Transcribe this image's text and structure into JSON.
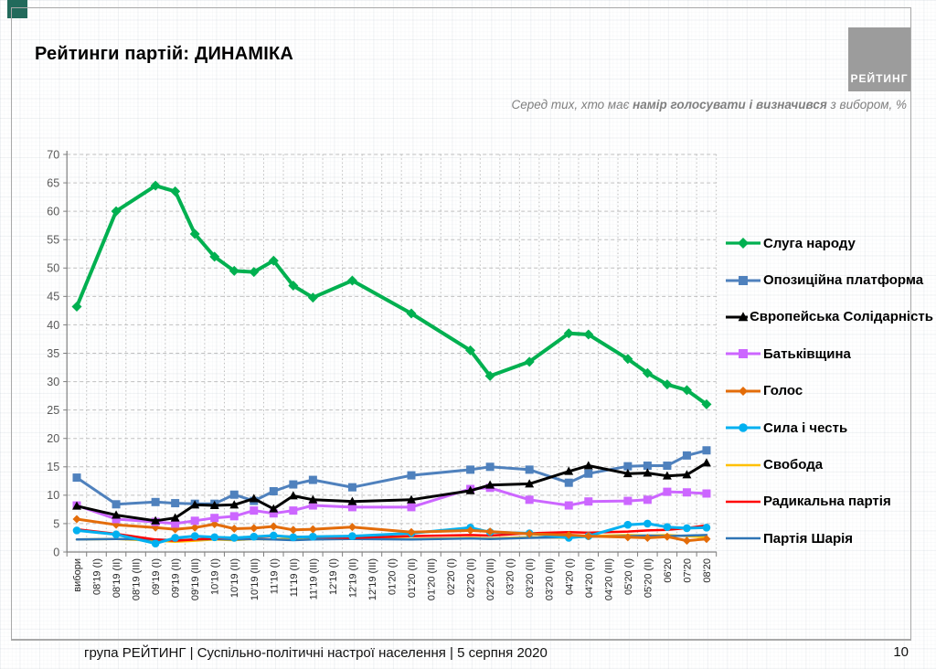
{
  "slide": {
    "title": "Рейтинги партій: ДИНАМІКА",
    "subtitle_prefix": "Серед тих, хто має ",
    "subtitle_bold": "намір голосувати і визначився",
    "subtitle_suffix": " з вибором, %",
    "logo_text": "РЕЙТИНГ",
    "footer_text": "група РЕЙТИНГ | Суспільно-політичні настрої населення  | 5 серпня 2020",
    "page_number": "10"
  },
  "chart_data": {
    "type": "line",
    "title": "Рейтинги партій: ДИНАМІКА",
    "xlabel": "",
    "ylabel": "",
    "ylim": [
      0,
      70
    ],
    "ytick_step": 5,
    "grid": true,
    "legend_position": "right",
    "categories": [
      "вибори",
      "08'19 (I)",
      "08'19 (II)",
      "08'19 (III)",
      "09'19 (I)",
      "09'19 (II)",
      "09'19 (III)",
      "10'19 (I)",
      "10'19 (II)",
      "10'19 (III)",
      "11'19 (I)",
      "11'19 (II)",
      "11'19 (III)",
      "12'19 (I)",
      "12'19 (II)",
      "12'19 (III)",
      "01'20 (I)",
      "01'20 (II)",
      "01'20 (III)",
      "02'20 (I)",
      "02'20 (II)",
      "02'20 (III)",
      "03'20 (I)",
      "03'20 (II)",
      "03'20 (III)",
      "04'20 (I)",
      "04'20 (II)",
      "04'20 (III)",
      "05'20 (I)",
      "05'20 (II)",
      "06'20",
      "07'20",
      "08'20"
    ],
    "series": [
      {
        "name": "Слуга народу",
        "color": "#00b050",
        "marker": "diamond",
        "line_width": 4,
        "marker_size": 5.5,
        "values": [
          43.2,
          null,
          60,
          null,
          64.5,
          63.5,
          56,
          52,
          49.5,
          49.3,
          51.3,
          46.9,
          44.8,
          null,
          47.8,
          null,
          null,
          42,
          null,
          null,
          35.5,
          31,
          null,
          33.5,
          null,
          38.5,
          38.3,
          null,
          34,
          31.5,
          29.5,
          28.5,
          26
        ]
      },
      {
        "name": "Опозиційна платформа",
        "color": "#4f81bd",
        "marker": "square",
        "line_width": 3,
        "marker_size": 4.5,
        "values": [
          13.1,
          null,
          8.4,
          null,
          8.8,
          8.6,
          8.5,
          8.5,
          10.1,
          9.0,
          10.7,
          11.9,
          12.7,
          null,
          11.4,
          null,
          null,
          13.5,
          null,
          null,
          14.5,
          15.0,
          null,
          14.5,
          null,
          12.2,
          13.8,
          null,
          15.1,
          15.2,
          15.2,
          17.0,
          17.9
        ]
      },
      {
        "name": "Європейська Солідарність",
        "color": "#000000",
        "marker": "triangle",
        "line_width": 3,
        "marker_size": 5.2,
        "values": [
          8.1,
          null,
          6.5,
          null,
          5.5,
          6.0,
          8.3,
          8.2,
          8.3,
          9.4,
          7.6,
          9.9,
          9.2,
          null,
          8.9,
          null,
          null,
          9.2,
          null,
          null,
          10.8,
          11.8,
          null,
          12.0,
          null,
          14.2,
          15.2,
          null,
          13.8,
          13.9,
          13.4,
          13.6,
          15.7
        ]
      },
      {
        "name": "Батьківщина",
        "color": "#cc66ff",
        "marker": "square",
        "line_width": 3,
        "marker_size": 4.5,
        "values": [
          8.2,
          null,
          5.8,
          null,
          5.3,
          5.0,
          5.5,
          6.0,
          6.3,
          7.3,
          6.8,
          7.3,
          8.2,
          null,
          7.9,
          null,
          null,
          7.9,
          null,
          null,
          11.1,
          11.3,
          null,
          9.2,
          null,
          8.2,
          8.9,
          null,
          9.0,
          9.2,
          10.6,
          10.5,
          10.3
        ]
      },
      {
        "name": "Голос",
        "color": "#e36c09",
        "marker": "diamond",
        "line_width": 3,
        "marker_size": 4.5,
        "values": [
          5.8,
          null,
          4.8,
          null,
          4.3,
          4.0,
          4.3,
          4.9,
          4.1,
          4.2,
          4.5,
          3.9,
          4.0,
          null,
          4.4,
          null,
          null,
          3.5,
          null,
          null,
          3.8,
          3.6,
          null,
          3.2,
          null,
          3.0,
          2.8,
          null,
          2.6,
          2.5,
          2.7,
          2.0,
          2.3
        ]
      },
      {
        "name": "Сила і честь",
        "color": "#00b0f0",
        "marker": "circle",
        "line_width": 3,
        "marker_size": 4.3,
        "values": [
          3.8,
          null,
          3.1,
          null,
          1.5,
          2.5,
          2.8,
          2.6,
          2.5,
          2.7,
          2.9,
          2.6,
          2.7,
          null,
          2.8,
          null,
          null,
          3.3,
          null,
          null,
          4.3,
          3.5,
          null,
          3.3,
          null,
          2.5,
          2.8,
          null,
          4.8,
          5.0,
          4.4,
          4.2,
          4.3
        ]
      },
      {
        "name": "Свобода",
        "color": "#ffc000",
        "marker": "none",
        "line_width": 2.5,
        "marker_size": 0,
        "values": [
          2.2,
          null,
          2.3,
          null,
          2.0,
          1.8,
          2.0,
          2.2,
          2.1,
          2.3,
          2.2,
          2.4,
          2.3,
          null,
          2.5,
          null,
          null,
          2.3,
          null,
          null,
          2.5,
          2.4,
          null,
          2.6,
          null,
          2.5,
          2.8,
          null,
          3.0,
          2.9,
          3.0,
          2.8,
          2.6
        ]
      },
      {
        "name": "Радикальна партія",
        "color": "#ff0000",
        "marker": "none",
        "line_width": 2.5,
        "marker_size": 0,
        "values": [
          4.0,
          null,
          3.2,
          null,
          2.2,
          2.0,
          2.2,
          2.4,
          2.5,
          2.6,
          2.8,
          2.7,
          2.6,
          null,
          2.5,
          null,
          null,
          2.8,
          null,
          null,
          3.0,
          2.9,
          null,
          3.3,
          null,
          3.5,
          3.4,
          null,
          3.6,
          3.8,
          3.9,
          4.2,
          4.7
        ]
      },
      {
        "name": "Партія Шарія",
        "color": "#2e74b5",
        "marker": "none",
        "line_width": 2.5,
        "marker_size": 0,
        "values": [
          2.2,
          null,
          2.3,
          null,
          2.2,
          2.1,
          2.2,
          2.3,
          2.2,
          2.3,
          2.2,
          2.1,
          2.2,
          null,
          2.3,
          null,
          null,
          2.2,
          null,
          null,
          2.4,
          2.3,
          null,
          2.5,
          null,
          2.6,
          2.7,
          null,
          2.8,
          2.9,
          2.8,
          2.9,
          3.0
        ]
      }
    ]
  }
}
